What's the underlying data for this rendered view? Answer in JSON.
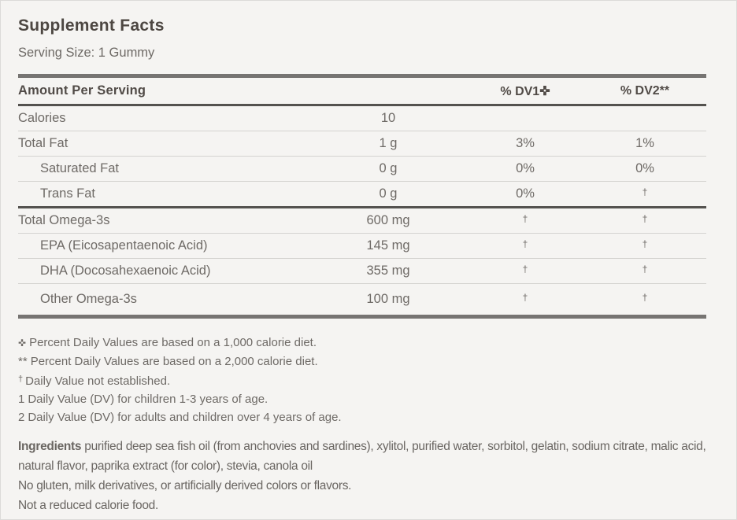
{
  "title": "Supplement Facts",
  "serving_size": "Serving Size: 1 Gummy",
  "colors": {
    "background": "#f5f4f2",
    "title_text": "#4d4742",
    "body_text": "#6e6a66",
    "rule_dark": "#54524f",
    "rule_light": "#d4d3d0",
    "bar": "#767472"
  },
  "table": {
    "header": {
      "amount_label": "Amount Per Serving",
      "dv1_label": "% DV1✜",
      "dv2_label": "% DV2**"
    },
    "rows": [
      {
        "name": "Calories",
        "indent": false,
        "amount": "10",
        "dv1": "",
        "dv2": "",
        "divider": "thin"
      },
      {
        "name": "Total Fat",
        "indent": false,
        "amount": "1 g",
        "dv1": "3%",
        "dv2": "1%",
        "divider": "thin"
      },
      {
        "name": "Saturated Fat",
        "indent": true,
        "amount": "0 g",
        "dv1": "0%",
        "dv2": "0%",
        "divider": "thin"
      },
      {
        "name": "Trans Fat",
        "indent": true,
        "amount": "0 g",
        "dv1": "0%",
        "dv2": "†",
        "divider": "heavy"
      },
      {
        "name": "Total Omega-3s",
        "indent": false,
        "amount": "600 mg",
        "dv1": "†",
        "dv2": "†",
        "divider": "thin"
      },
      {
        "name": "EPA (Eicosapentaenoic Acid)",
        "indent": true,
        "amount": "145 mg",
        "dv1": "†",
        "dv2": "†",
        "divider": "thin"
      },
      {
        "name": "DHA (Docosahexaenoic Acid)",
        "indent": true,
        "amount": "355 mg",
        "dv1": "†",
        "dv2": "†",
        "divider": "thin"
      },
      {
        "name": "Other Omega-3s",
        "indent": true,
        "amount": "100 mg",
        "dv1": "†",
        "dv2": "†",
        "divider": "none"
      }
    ]
  },
  "footnotes": [
    {
      "symbol": "✜",
      "text": "Percent Daily Values are based on a 1,000 calorie diet."
    },
    {
      "symbol": "**",
      "text": "Percent Daily Values are based on a 2,000 calorie diet."
    },
    {
      "symbol": "†",
      "text": "Daily Value not established."
    },
    {
      "symbol": "1",
      "text": "Daily Value (DV) for children 1-3 years of age."
    },
    {
      "symbol": "2",
      "text": "Daily Value (DV) for adults and children over 4 years of age."
    }
  ],
  "ingredients": {
    "label": "Ingredients",
    "text": "purified deep sea fish oil (from anchovies and sardines), xylitol, purified water, sorbitol, gelatin, sodium citrate, malic acid, natural flavor, paprika extract (for color), stevia, canola oil"
  },
  "notes": [
    "No gluten, milk derivatives, or artificially derived colors or flavors.",
    "Not a reduced calorie food."
  ]
}
